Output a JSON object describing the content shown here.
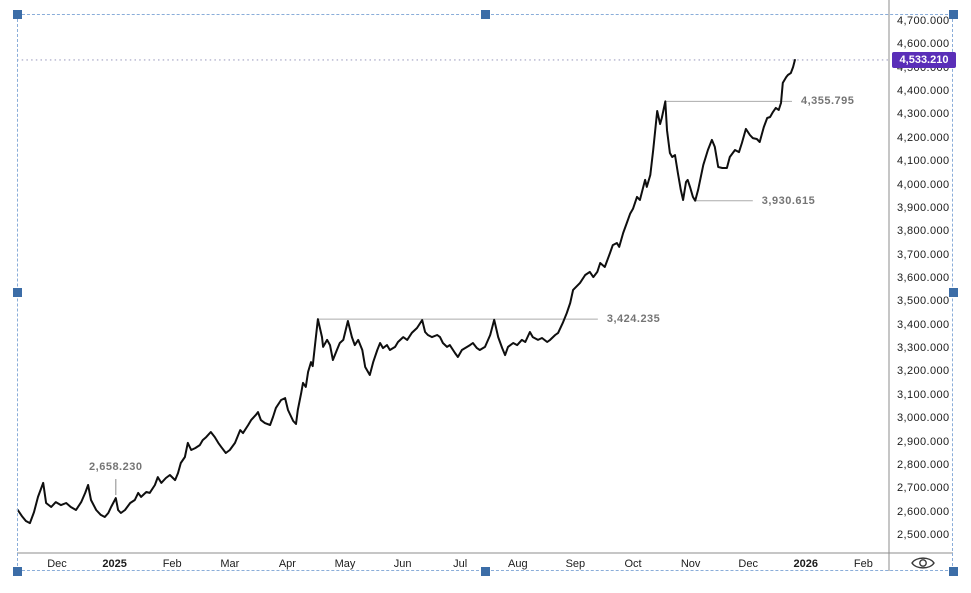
{
  "window": {
    "background": "#ffffff"
  },
  "chart_data": {
    "type": "line",
    "title": "",
    "legend": "none",
    "grid": "off",
    "last_price_label": "4,533.210",
    "last_price": 4533.21,
    "y_axis": {
      "side": "right",
      "ylim": [
        2500,
        4700
      ],
      "tick_step": 100,
      "tick_labels": [
        "4,700.000",
        "4,600.000",
        "4,500.000",
        "4,400.000",
        "4,300.000",
        "4,200.000",
        "4,100.000",
        "4,000.000",
        "3,900.000",
        "3,800.000",
        "3,700.000",
        "3,600.000",
        "3,500.000",
        "3,400.000",
        "3,300.000",
        "3,200.000",
        "3,100.000",
        "3,000.000",
        "2,900.000",
        "2,800.000",
        "2,700.000",
        "2,600.000",
        "2,500.000"
      ]
    },
    "x_axis": {
      "note": "monthly ticks, m=0 is Dec 2024",
      "tick_labels": [
        "Dec",
        "2025",
        "Feb",
        "Mar",
        "Apr",
        "May",
        "Jun",
        "Jul",
        "Aug",
        "Sep",
        "Oct",
        "Nov",
        "Dec",
        "2026",
        "Feb"
      ],
      "bold_ticks": [
        "2025",
        "2026"
      ],
      "xlim_months": [
        -0.7,
        14.4
      ]
    },
    "series": [
      {
        "name": "price",
        "color": "#0f0f0f",
        "points": [
          [
            -0.68,
            2607
          ],
          [
            -0.61,
            2581
          ],
          [
            -0.54,
            2560
          ],
          [
            -0.47,
            2551
          ],
          [
            -0.4,
            2598
          ],
          [
            -0.33,
            2663
          ],
          [
            -0.24,
            2723
          ],
          [
            -0.19,
            2637
          ],
          [
            -0.1,
            2620
          ],
          [
            -0.02,
            2641
          ],
          [
            0.07,
            2628
          ],
          [
            0.16,
            2637
          ],
          [
            0.24,
            2620
          ],
          [
            0.33,
            2607
          ],
          [
            0.42,
            2641
          ],
          [
            0.49,
            2680
          ],
          [
            0.54,
            2714
          ],
          [
            0.59,
            2650
          ],
          [
            0.68,
            2607
          ],
          [
            0.76,
            2586
          ],
          [
            0.83,
            2577
          ],
          [
            0.89,
            2594
          ],
          [
            0.94,
            2620
          ],
          [
            1.02,
            2658
          ],
          [
            1.06,
            2607
          ],
          [
            1.11,
            2594
          ],
          [
            1.18,
            2607
          ],
          [
            1.27,
            2637
          ],
          [
            1.35,
            2650
          ],
          [
            1.41,
            2680
          ],
          [
            1.46,
            2663
          ],
          [
            1.55,
            2684
          ],
          [
            1.61,
            2680
          ],
          [
            1.7,
            2714
          ],
          [
            1.75,
            2748
          ],
          [
            1.81,
            2723
          ],
          [
            1.89,
            2744
          ],
          [
            1.96,
            2757
          ],
          [
            2.05,
            2735
          ],
          [
            2.1,
            2765
          ],
          [
            2.15,
            2808
          ],
          [
            2.22,
            2834
          ],
          [
            2.27,
            2894
          ],
          [
            2.33,
            2864
          ],
          [
            2.4,
            2872
          ],
          [
            2.48,
            2885
          ],
          [
            2.53,
            2906
          ],
          [
            2.59,
            2919
          ],
          [
            2.67,
            2941
          ],
          [
            2.74,
            2919
          ],
          [
            2.8,
            2894
          ],
          [
            2.85,
            2877
          ],
          [
            2.93,
            2851
          ],
          [
            3.0,
            2864
          ],
          [
            3.09,
            2894
          ],
          [
            3.18,
            2949
          ],
          [
            3.23,
            2936
          ],
          [
            3.32,
            2971
          ],
          [
            3.37,
            2992
          ],
          [
            3.45,
            3013
          ],
          [
            3.49,
            3026
          ],
          [
            3.54,
            2992
          ],
          [
            3.61,
            2979
          ],
          [
            3.7,
            2971
          ],
          [
            3.75,
            3005
          ],
          [
            3.8,
            3044
          ],
          [
            3.89,
            3078
          ],
          [
            3.96,
            3086
          ],
          [
            4.01,
            3035
          ],
          [
            4.1,
            2988
          ],
          [
            4.15,
            2975
          ],
          [
            4.18,
            3035
          ],
          [
            4.24,
            3108
          ],
          [
            4.27,
            3151
          ],
          [
            4.32,
            3134
          ],
          [
            4.36,
            3198
          ],
          [
            4.41,
            3240
          ],
          [
            4.44,
            3223
          ],
          [
            4.48,
            3313
          ],
          [
            4.53,
            3424
          ],
          [
            4.6,
            3347
          ],
          [
            4.62,
            3305
          ],
          [
            4.69,
            3335
          ],
          [
            4.74,
            3313
          ],
          [
            4.79,
            3249
          ],
          [
            4.86,
            3292
          ],
          [
            4.91,
            3322
          ],
          [
            4.97,
            3335
          ],
          [
            5.05,
            3416
          ],
          [
            5.12,
            3347
          ],
          [
            5.17,
            3313
          ],
          [
            5.23,
            3335
          ],
          [
            5.3,
            3292
          ],
          [
            5.35,
            3219
          ],
          [
            5.43,
            3185
          ],
          [
            5.49,
            3240
          ],
          [
            5.56,
            3292
          ],
          [
            5.61,
            3322
          ],
          [
            5.66,
            3300
          ],
          [
            5.73,
            3313
          ],
          [
            5.78,
            3292
          ],
          [
            5.87,
            3305
          ],
          [
            5.92,
            3326
          ],
          [
            6.01,
            3347
          ],
          [
            6.08,
            3335
          ],
          [
            6.16,
            3365
          ],
          [
            6.25,
            3386
          ],
          [
            6.34,
            3420
          ],
          [
            6.39,
            3369
          ],
          [
            6.44,
            3356
          ],
          [
            6.51,
            3347
          ],
          [
            6.6,
            3356
          ],
          [
            6.65,
            3347
          ],
          [
            6.7,
            3322
          ],
          [
            6.77,
            3305
          ],
          [
            6.82,
            3313
          ],
          [
            6.91,
            3279
          ],
          [
            6.96,
            3262
          ],
          [
            7.03,
            3292
          ],
          [
            7.12,
            3305
          ],
          [
            7.17,
            3313
          ],
          [
            7.22,
            3322
          ],
          [
            7.29,
            3300
          ],
          [
            7.34,
            3292
          ],
          [
            7.43,
            3305
          ],
          [
            7.52,
            3356
          ],
          [
            7.59,
            3421
          ],
          [
            7.66,
            3347
          ],
          [
            7.73,
            3300
          ],
          [
            7.78,
            3270
          ],
          [
            7.83,
            3305
          ],
          [
            7.92,
            3322
          ],
          [
            7.99,
            3313
          ],
          [
            8.07,
            3335
          ],
          [
            8.13,
            3326
          ],
          [
            8.21,
            3369
          ],
          [
            8.26,
            3347
          ],
          [
            8.35,
            3335
          ],
          [
            8.42,
            3343
          ],
          [
            8.51,
            3326
          ],
          [
            8.56,
            3335
          ],
          [
            8.65,
            3356
          ],
          [
            8.7,
            3365
          ],
          [
            8.78,
            3407
          ],
          [
            8.85,
            3450
          ],
          [
            8.91,
            3493
          ],
          [
            8.96,
            3549
          ],
          [
            9.08,
            3579
          ],
          [
            9.17,
            3613
          ],
          [
            9.25,
            3626
          ],
          [
            9.31,
            3604
          ],
          [
            9.38,
            3626
          ],
          [
            9.43,
            3664
          ],
          [
            9.51,
            3647
          ],
          [
            9.6,
            3707
          ],
          [
            9.65,
            3741
          ],
          [
            9.72,
            3750
          ],
          [
            9.76,
            3733
          ],
          [
            9.83,
            3793
          ],
          [
            9.9,
            3840
          ],
          [
            9.95,
            3875
          ],
          [
            10.0,
            3896
          ],
          [
            10.07,
            3947
          ],
          [
            10.12,
            3934
          ],
          [
            10.21,
            4020
          ],
          [
            10.24,
            3990
          ],
          [
            10.3,
            4041
          ],
          [
            10.35,
            4148
          ],
          [
            10.42,
            4315
          ],
          [
            10.47,
            4259
          ],
          [
            10.5,
            4285
          ],
          [
            10.56,
            4356
          ],
          [
            10.59,
            4233
          ],
          [
            10.64,
            4135
          ],
          [
            10.68,
            4118
          ],
          [
            10.73,
            4126
          ],
          [
            10.78,
            4049
          ],
          [
            10.83,
            3977
          ],
          [
            10.87,
            3934
          ],
          [
            10.92,
            4011
          ],
          [
            10.95,
            4020
          ],
          [
            10.99,
            3990
          ],
          [
            11.04,
            3947
          ],
          [
            11.08,
            3931
          ],
          [
            11.13,
            3977
          ],
          [
            11.22,
            4084
          ],
          [
            11.3,
            4148
          ],
          [
            11.37,
            4191
          ],
          [
            11.42,
            4161
          ],
          [
            11.48,
            4075
          ],
          [
            11.55,
            4071
          ],
          [
            11.63,
            4071
          ],
          [
            11.68,
            4118
          ],
          [
            11.77,
            4148
          ],
          [
            11.84,
            4139
          ],
          [
            11.89,
            4178
          ],
          [
            11.96,
            4238
          ],
          [
            12.03,
            4212
          ],
          [
            12.08,
            4199
          ],
          [
            12.15,
            4195
          ],
          [
            12.2,
            4182
          ],
          [
            12.27,
            4246
          ],
          [
            12.33,
            4285
          ],
          [
            12.38,
            4289
          ],
          [
            12.43,
            4311
          ],
          [
            12.48,
            4328
          ],
          [
            12.53,
            4319
          ],
          [
            12.57,
            4349
          ],
          [
            12.6,
            4435
          ],
          [
            12.66,
            4460
          ],
          [
            12.69,
            4469
          ],
          [
            12.74,
            4477
          ],
          [
            12.78,
            4503
          ],
          [
            12.81,
            4533
          ]
        ]
      }
    ],
    "annotations": [
      {
        "label": "2,658.230",
        "price": 2658.23,
        "m": 1.02,
        "style": "pointer-down"
      },
      {
        "label": "3,424.235",
        "price": 3424.235,
        "m_from": 4.55,
        "m_to": 9.39,
        "style": "hline",
        "label_side": "right"
      },
      {
        "label": "4,355.795",
        "price": 4355.795,
        "m_from": 10.56,
        "m_to": 12.76,
        "style": "hline",
        "label_side": "right"
      },
      {
        "label": "3,930.615",
        "price": 3930.615,
        "m_from": 11.08,
        "m_to": 12.08,
        "style": "hline",
        "label_side": "right"
      }
    ]
  },
  "time_axis": {
    "corner_icon": "eye-icon"
  },
  "colors": {
    "line": "#0f0f0f",
    "axis_line": "#8c8c8c",
    "tick_text": "#1c1c1c",
    "annotation_line": "#ababab",
    "annotation_text": "#757575",
    "price_label_bg": "#5a2eb8",
    "price_label_text": "#ffffff",
    "dotted_line": "#b2b2cd",
    "selection_handle": "#3c6da7",
    "selection_border": "#8aadd9"
  }
}
